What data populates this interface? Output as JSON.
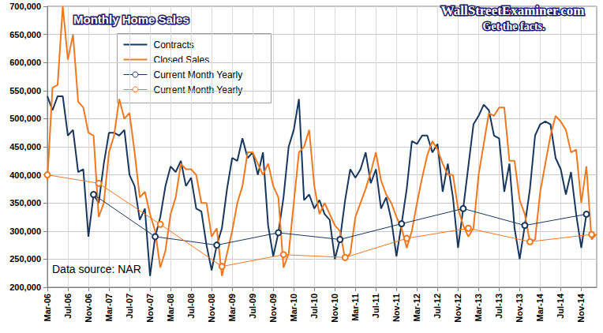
{
  "chart_data": {
    "type": "line",
    "title": "Monthly Home Sales",
    "annotations": [
      "WallStreetExaminer.com",
      "Get the facts.",
      "Data source: NAR"
    ],
    "categories": [
      "Mar-06",
      null,
      null,
      null,
      "Jul-06",
      null,
      null,
      null,
      "Nov-06",
      null,
      null,
      null,
      "Mar-07",
      null,
      null,
      null,
      "Jul-07",
      null,
      null,
      null,
      "Nov-07",
      null,
      null,
      null,
      "Mar-08",
      null,
      null,
      null,
      "Jul-08",
      null,
      null,
      null,
      "Nov-08",
      null,
      null,
      null,
      "Mar-09",
      null,
      null,
      null,
      "Jul-09",
      null,
      null,
      null,
      "Nov-09",
      null,
      null,
      null,
      "Mar-10",
      null,
      null,
      null,
      "Jul-10",
      null,
      null,
      null,
      "Nov-10",
      null,
      null,
      null,
      "Mar-11",
      null,
      null,
      null,
      "Jul-11",
      null,
      null,
      null,
      "Nov-11",
      null,
      null,
      null,
      "Mar-12",
      null,
      null,
      null,
      "Jul-12",
      null,
      null,
      null,
      "Nov-12",
      null,
      null,
      null,
      "Mar-13",
      null,
      null,
      null,
      "Jul-13",
      null,
      null,
      null,
      "Nov-13",
      null,
      null,
      null,
      "Mar-14",
      null,
      null,
      null,
      "Jul-14",
      null,
      null,
      null,
      "Nov-14",
      null,
      null,
      null
    ],
    "series": [
      {
        "name": "Contracts",
        "color": "#17375e",
        "values": [
          540000,
          515000,
          540000,
          540000,
          470000,
          480000,
          405000,
          410000,
          290000,
          365000,
          350000,
          420000,
          475000,
          475000,
          470000,
          480000,
          400000,
          380000,
          320000,
          340000,
          220000,
          290000,
          325000,
          380000,
          415000,
          405000,
          425000,
          380000,
          395000,
          340000,
          335000,
          275000,
          230000,
          275000,
          305000,
          375000,
          430000,
          425000,
          465000,
          430000,
          440000,
          400000,
          440000,
          310000,
          255000,
          297000,
          360000,
          450000,
          480000,
          535000,
          355000,
          365000,
          340000,
          355000,
          330000,
          320000,
          250000,
          285000,
          355000,
          410000,
          395000,
          410000,
          440000,
          385000,
          410000,
          340000,
          360000,
          320000,
          255000,
          313000,
          375000,
          460000,
          455000,
          470000,
          470000,
          440000,
          455000,
          370000,
          420000,
          360000,
          270000,
          340000,
          415000,
          490000,
          505000,
          525000,
          515000,
          470000,
          465000,
          370000,
          420000,
          305000,
          250000,
          310000,
          375000,
          470000,
          490000,
          495000,
          490000,
          430000,
          410000,
          365000,
          405000,
          330000,
          270000,
          330000,
          null,
          null
        ]
      },
      {
        "name": "Closed Sales",
        "color": "#f0791e",
        "values": [
          390000,
          555000,
          560000,
          700000,
          605000,
          650000,
          530000,
          520000,
          475000,
          470000,
          325000,
          350000,
          440000,
          470000,
          535000,
          500000,
          510000,
          440000,
          360000,
          370000,
          330000,
          300000,
          235000,
          265000,
          330000,
          360000,
          420000,
          410000,
          410000,
          400000,
          350000,
          350000,
          290000,
          305000,
          220000,
          260000,
          300000,
          350000,
          380000,
          440000,
          440000,
          420000,
          400000,
          420000,
          380000,
          360000,
          235000,
          260000,
          350000,
          440000,
          450000,
          480000,
          380000,
          330000,
          350000,
          330000,
          310000,
          300000,
          250000,
          260000,
          325000,
          350000,
          375000,
          405000,
          440000,
          390000,
          365000,
          350000,
          325000,
          305000,
          270000,
          300000,
          350000,
          395000,
          435000,
          460000,
          445000,
          420000,
          400000,
          400000,
          340000,
          310000,
          290000,
          305000,
          400000,
          455000,
          510000,
          505000,
          520000,
          520000,
          425000,
          425000,
          355000,
          330000,
          280000,
          285000,
          370000,
          420000,
          470000,
          505000,
          495000,
          480000,
          440000,
          445000,
          350000,
          415000,
          285000,
          295000
        ]
      },
      {
        "name": "Current Month Yearly",
        "color": "#17375e",
        "marker": "circle",
        "values": [
          null,
          null,
          null,
          null,
          null,
          null,
          null,
          null,
          null,
          365000,
          null,
          null,
          null,
          null,
          null,
          null,
          null,
          null,
          null,
          null,
          null,
          290000,
          null,
          null,
          null,
          null,
          null,
          null,
          null,
          null,
          null,
          null,
          null,
          275000,
          null,
          null,
          null,
          null,
          null,
          null,
          null,
          null,
          null,
          null,
          null,
          297000,
          null,
          null,
          null,
          null,
          null,
          null,
          null,
          null,
          null,
          null,
          null,
          285000,
          null,
          null,
          null,
          null,
          null,
          null,
          null,
          null,
          null,
          null,
          null,
          313000,
          null,
          null,
          null,
          null,
          null,
          null,
          null,
          null,
          null,
          null,
          null,
          340000,
          null,
          null,
          null,
          null,
          null,
          null,
          null,
          null,
          null,
          null,
          null,
          310000,
          null,
          null,
          null,
          null,
          null,
          null,
          null,
          null,
          null,
          null,
          null,
          330000,
          null,
          null
        ]
      },
      {
        "name": "Current Month Yearly",
        "color": "#f0791e",
        "marker": "circle",
        "values": [
          400000,
          null,
          null,
          null,
          null,
          null,
          null,
          null,
          null,
          null,
          385000,
          null,
          null,
          null,
          null,
          null,
          null,
          null,
          null,
          null,
          null,
          null,
          312000,
          null,
          null,
          null,
          null,
          null,
          null,
          null,
          null,
          null,
          null,
          null,
          237000,
          null,
          null,
          null,
          null,
          null,
          null,
          null,
          null,
          null,
          null,
          null,
          258000,
          null,
          null,
          null,
          null,
          null,
          null,
          null,
          null,
          null,
          null,
          null,
          253000,
          null,
          null,
          null,
          null,
          null,
          null,
          null,
          null,
          null,
          null,
          null,
          287000,
          null,
          null,
          null,
          null,
          null,
          null,
          null,
          null,
          null,
          null,
          null,
          305000,
          null,
          null,
          null,
          null,
          null,
          null,
          null,
          null,
          null,
          null,
          null,
          281000,
          null,
          null,
          null,
          null,
          null,
          null,
          null,
          null,
          null,
          null,
          null,
          294000,
          null
        ]
      }
    ],
    "ylim": [
      200000,
      700000
    ],
    "yticks": [
      {
        "value": 200000,
        "label": "200,000"
      },
      {
        "value": 250000,
        "label": "250,000"
      },
      {
        "value": 300000,
        "label": "300,000"
      },
      {
        "value": 350000,
        "label": "350,000"
      },
      {
        "value": 400000,
        "label": "400,000"
      },
      {
        "value": 450000,
        "label": "450,000"
      },
      {
        "value": 500000,
        "label": "500,000"
      },
      {
        "value": 550000,
        "label": "550,000"
      },
      {
        "value": 600000,
        "label": "600,000"
      },
      {
        "value": 650000,
        "label": "650,000"
      },
      {
        "value": 700000,
        "label": "700,000"
      }
    ],
    "grid": true,
    "legend": "top-left"
  }
}
